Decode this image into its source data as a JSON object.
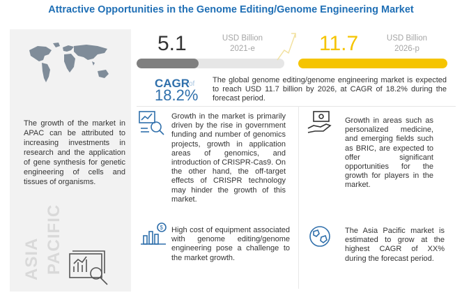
{
  "title": "Attractive Opportunities in the Genome Editing/Genome Engineering Market",
  "region_panel": {
    "text": "The growth of the market in APAC can be attributed to increasing investments in research and the application of gene synthesis for genetic engineering of cells and tissues of organisms.",
    "region_word_1": "ASIA",
    "region_word_2": "PACIFIC",
    "map_icon": "world-map-icon",
    "analysis_icon": "chart-magnifier-icon"
  },
  "stats": {
    "start": {
      "value": "5.1",
      "unit": "USD Billion",
      "year": "2021-e",
      "color": "#7f7f7f"
    },
    "end": {
      "value": "11.7",
      "unit": "USD Billion",
      "year": "2026-p",
      "color": "#f5c400"
    }
  },
  "cagr": {
    "label": "CAGR",
    "of": "of",
    "value": "18.2%",
    "summary": "The global genome editing/genome engineering market is expected to reach USD 11.7 billion by 2026, at CAGR of 18.2% during the forecast period."
  },
  "blocks": [
    {
      "icon": "magnifier-chart-icon",
      "text": "Growth in the market is primarily driven by the rise in government funding and number of genomics projects, growth in application areas of genomics, and introduction of CRISPR-Cas9. On the other hand, the off-target effects of CRISPR technology may hinder the growth of this market."
    },
    {
      "icon": "money-hand-icon",
      "text": "Growth in areas such as personalized medicine, and emerging fields such as BRIC, are expected to offer significant opportunities for the growth for players in the market."
    },
    {
      "icon": "dollar-bar-chart-icon",
      "text": "High cost of equipment associated with genome editing/genome engineering pose a challenge to the market growth."
    },
    {
      "icon": "globe-icon",
      "text": "The Asia Pacific market is estimated to grow at the highest CAGR of XX% during the forecast period."
    }
  ],
  "colors": {
    "title": "#1f6fb5",
    "cagr": "#2f6fab",
    "accent_yellow": "#f5c400",
    "accent_gray": "#7f7f7f"
  }
}
